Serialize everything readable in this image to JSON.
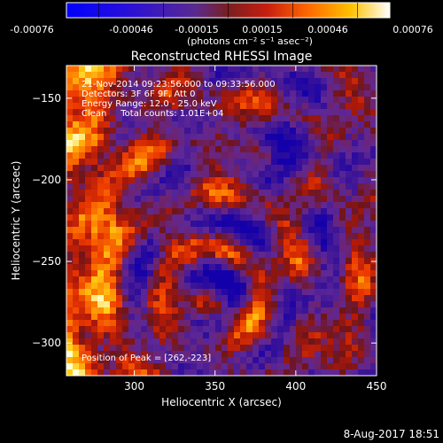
{
  "colorbar": {
    "tick_labels": [
      "-0.00076",
      "-0.00046",
      "-0.00015",
      "0.00015",
      "0.00046",
      "0.00076"
    ],
    "units": "(photons cm⁻² s⁻¹ asec⁻²)"
  },
  "chart_data": {
    "type": "heatmap",
    "title": "Reconstructed RHESSI Image",
    "xlabel": "Heliocentric X (arcsec)",
    "ylabel": "Heliocentric Y (arcsec)",
    "xlim": [
      258,
      450
    ],
    "ylim": [
      -320,
      -130
    ],
    "xticks": [
      300,
      350,
      400,
      450
    ],
    "yticks": [
      -150,
      -200,
      -250,
      -300
    ],
    "clim": [
      -0.00076,
      0.00076
    ],
    "colormap": "blue-purple-red-yellow-white",
    "peak": {
      "x": 262,
      "y": -223
    },
    "annotations": [
      "21-Nov-2014 09:23:56.000 to 09:33:56.000",
      "Detectors: 3F 6F 9F, Att 0",
      "Energy Range: 12.0 - 25.0 keV",
      "Clean     Total counts: 1.01E+04",
      "Position of Peak = [262,-223]"
    ]
  },
  "footer": {
    "timestamp": "8-Aug-2017 18:51"
  }
}
